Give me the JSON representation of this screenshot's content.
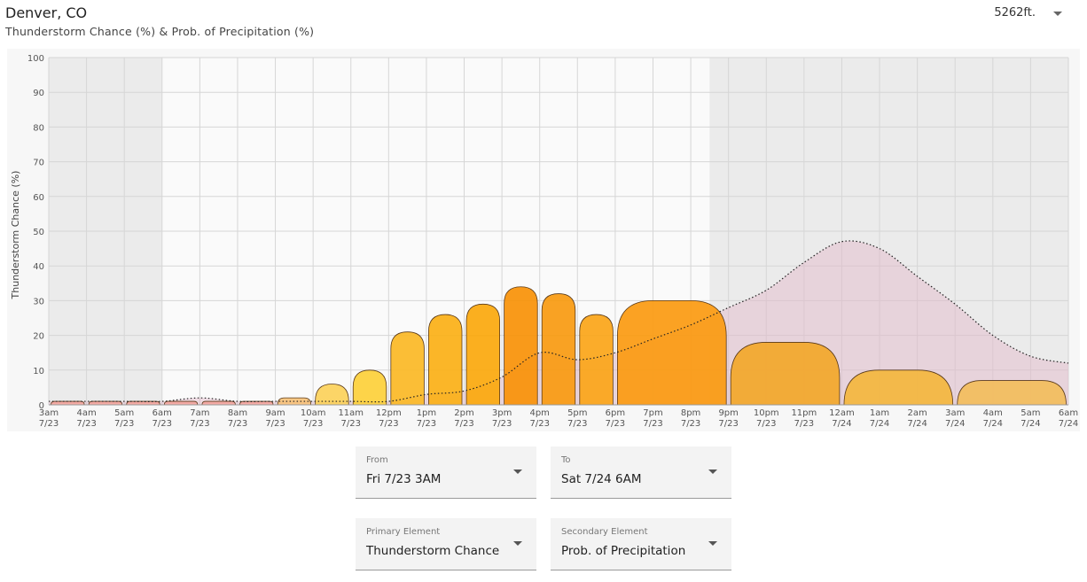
{
  "header": {
    "location": "Denver, CO",
    "subtitle": "Thunderstorm Chance (%) & Prob. of Precipitation (%)",
    "elevation": "5262ft."
  },
  "controls": {
    "from_label": "From",
    "from_value": "Fri 7/23 3AM",
    "to_label": "To",
    "to_value": "Sat 7/24 6AM",
    "primary_label": "Primary Element",
    "primary_value": "Thunderstorm Chance",
    "secondary_label": "Secondary Element",
    "secondary_value": "Prob. of Precipitation"
  },
  "chart_data": {
    "type": "bar",
    "ylabel": "Thunderstorm Chance (%)",
    "ylim": [
      0,
      100
    ],
    "yticks": [
      0,
      10,
      20,
      30,
      40,
      50,
      60,
      70,
      80,
      90,
      100
    ],
    "x_ticks": [
      [
        "3am",
        "7/23"
      ],
      [
        "4am",
        "7/23"
      ],
      [
        "5am",
        "7/23"
      ],
      [
        "6am",
        "7/23"
      ],
      [
        "7am",
        "7/23"
      ],
      [
        "8am",
        "7/23"
      ],
      [
        "9am",
        "7/23"
      ],
      [
        "10am",
        "7/23"
      ],
      [
        "11am",
        "7/23"
      ],
      [
        "12pm",
        "7/23"
      ],
      [
        "1pm",
        "7/23"
      ],
      [
        "2pm",
        "7/23"
      ],
      [
        "3pm",
        "7/23"
      ],
      [
        "4pm",
        "7/23"
      ],
      [
        "5pm",
        "7/23"
      ],
      [
        "6pm",
        "7/23"
      ],
      [
        "7pm",
        "7/23"
      ],
      [
        "8pm",
        "7/23"
      ],
      [
        "9pm",
        "7/23"
      ],
      [
        "10pm",
        "7/23"
      ],
      [
        "11pm",
        "7/23"
      ],
      [
        "12am",
        "7/24"
      ],
      [
        "1am",
        "7/24"
      ],
      [
        "2am",
        "7/24"
      ],
      [
        "3am",
        "7/24"
      ],
      [
        "4am",
        "7/24"
      ],
      [
        "5am",
        "7/24"
      ],
      [
        "6am",
        "7/24"
      ]
    ],
    "night_shading": [
      [
        0,
        3
      ],
      [
        17.5,
        27
      ]
    ],
    "series": [
      {
        "name": "Thunderstorm Chance",
        "bars": [
          {
            "start": 0,
            "end": 1,
            "value": 1,
            "color": "#f4a6a0"
          },
          {
            "start": 1,
            "end": 2,
            "value": 1,
            "color": "#f4a6a0"
          },
          {
            "start": 2,
            "end": 3,
            "value": 1,
            "color": "#f4a6a0"
          },
          {
            "start": 3,
            "end": 4,
            "value": 1,
            "color": "#f4a6a0"
          },
          {
            "start": 4,
            "end": 5,
            "value": 1,
            "color": "#f4a6a0"
          },
          {
            "start": 5,
            "end": 6,
            "value": 1,
            "color": "#f4a6a0"
          },
          {
            "start": 6,
            "end": 7,
            "value": 2,
            "color": "#f7c27a"
          },
          {
            "start": 7,
            "end": 8,
            "value": 6,
            "color": "#fcd15a"
          },
          {
            "start": 8,
            "end": 9,
            "value": 10,
            "color": "#fdd03a"
          },
          {
            "start": 9,
            "end": 10,
            "value": 21,
            "color": "#fbb925"
          },
          {
            "start": 10,
            "end": 11,
            "value": 26,
            "color": "#fbb016"
          },
          {
            "start": 11,
            "end": 12,
            "value": 29,
            "color": "#fba80c"
          },
          {
            "start": 12,
            "end": 13,
            "value": 34,
            "color": "#f99106"
          },
          {
            "start": 13,
            "end": 14,
            "value": 32,
            "color": "#f99a10"
          },
          {
            "start": 14,
            "end": 15,
            "value": 26,
            "color": "#fba518"
          },
          {
            "start": 15,
            "end": 18,
            "value": 30,
            "color": "#fb9a10"
          },
          {
            "start": 18,
            "end": 21,
            "value": 18,
            "color": "#f3a72a"
          },
          {
            "start": 21,
            "end": 24,
            "value": 10,
            "color": "#f4b63e"
          },
          {
            "start": 24,
            "end": 27,
            "value": 7,
            "color": "#f3bd5c"
          }
        ]
      },
      {
        "name": "Prob. of Precipitation",
        "x": [
          0,
          1,
          2,
          3,
          4,
          5,
          6,
          7,
          8,
          9,
          10,
          11,
          12,
          13,
          14,
          15,
          16,
          17,
          18,
          19,
          20,
          21,
          22,
          23,
          24,
          25,
          26,
          27
        ],
        "values": [
          1,
          1,
          1,
          1,
          2,
          1,
          1,
          1,
          1,
          1,
          3,
          4,
          8,
          15,
          13,
          15,
          19,
          23,
          28,
          33,
          41,
          47,
          45,
          37,
          29,
          20,
          14,
          12
        ],
        "color": "#e3b5c8"
      }
    ]
  }
}
